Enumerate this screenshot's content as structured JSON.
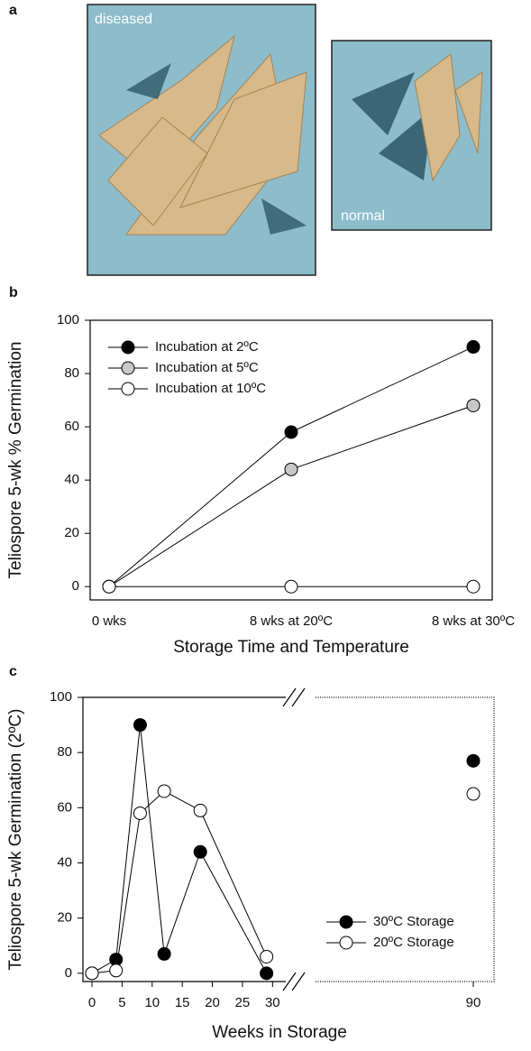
{
  "figure": {
    "panel_label": "a",
    "photo_labels": [
      "diseased",
      "normal"
    ]
  },
  "chart_data": [
    {
      "type": "line",
      "panel_label": "b",
      "categories": [
        "0 wks",
        "8 wks at 20ºC",
        "8 wks at 30ºC"
      ],
      "series": [
        {
          "name": "Incubation at 2ºC",
          "color": "#000000",
          "values": [
            0,
            58,
            90
          ]
        },
        {
          "name": "Incubation at 5ºC",
          "color": "#c8c8c8",
          "values": [
            0,
            44,
            68
          ]
        },
        {
          "name": "Incubation at 10ºC",
          "color": "#ffffff",
          "values": [
            0,
            0,
            0
          ]
        }
      ],
      "ylim": [
        -5,
        100
      ],
      "yticks": [
        0,
        20,
        40,
        60,
        80,
        100
      ],
      "y_label": "Teliospore 5-wk % Germination",
      "x_label": "Storage Time and Temperature",
      "legend": "upper left"
    },
    {
      "type": "line",
      "panel_label": "c",
      "x": [
        0,
        4,
        8,
        12,
        18,
        29,
        90
      ],
      "series": [
        {
          "name": "30ºC Storage",
          "color": "#000000",
          "values": [
            0,
            5,
            90,
            7,
            44,
            0,
            77
          ]
        },
        {
          "name": "20ºC Storage",
          "color": "#ffffff",
          "values": [
            0,
            1,
            58,
            66,
            59,
            6,
            65
          ]
        }
      ],
      "xlim": [
        -1.5,
        92
      ],
      "x_break": [
        31,
        88
      ],
      "xticks": [
        0,
        5,
        10,
        15,
        20,
        25,
        30,
        90
      ],
      "ylim": [
        -3,
        100
      ],
      "yticks": [
        0,
        20,
        40,
        60,
        80,
        100
      ],
      "y_label": "Teliospore 5-wk Germination (2ºC)",
      "x_label": "Weeks in Storage",
      "legend": "lower right"
    }
  ]
}
